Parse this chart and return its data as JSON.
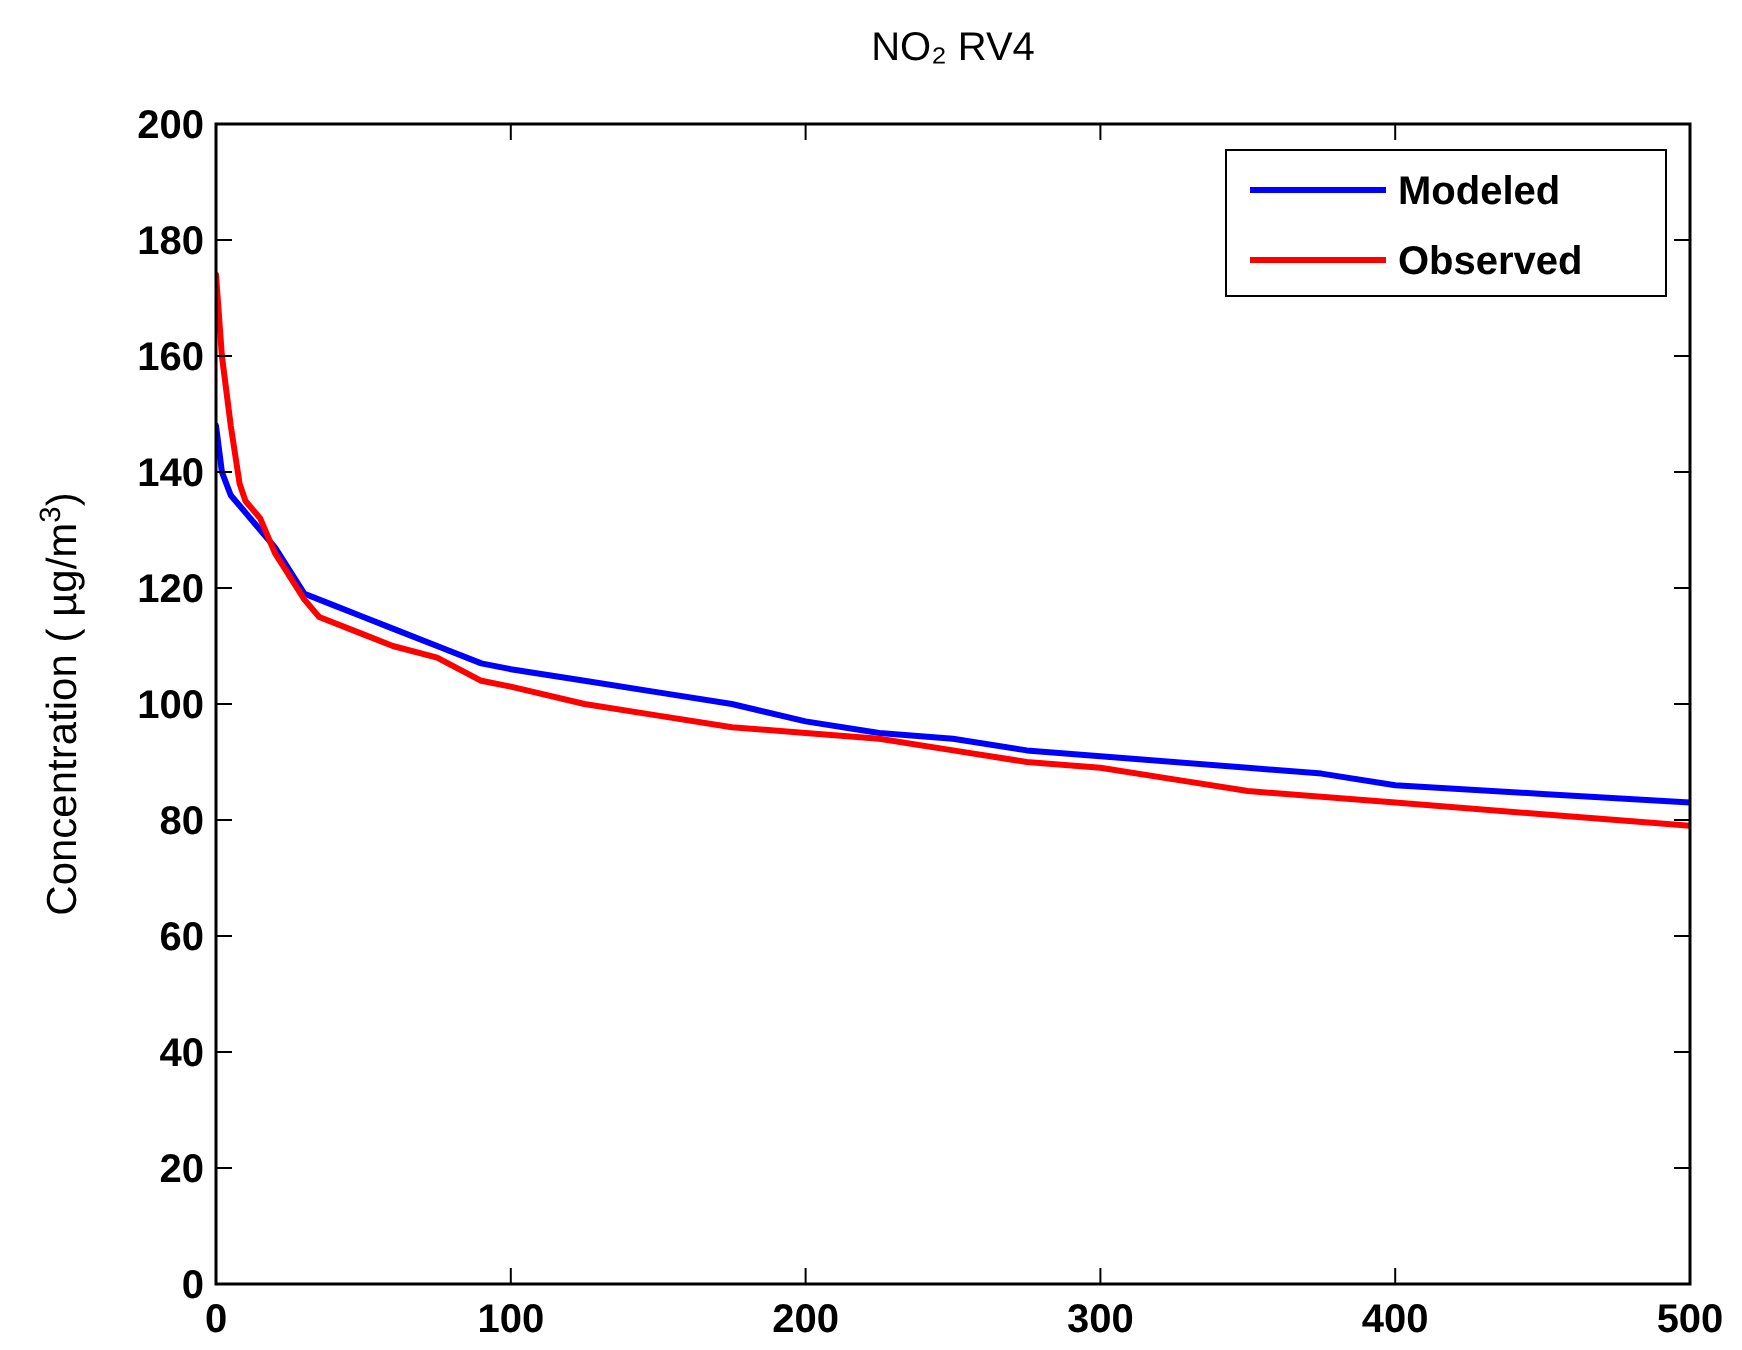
{
  "chart_data": {
    "type": "line",
    "title": "NO₂  RV4",
    "ylabel": "Concentration ( µg/m$^{3}$)",
    "xlim": [
      0,
      500
    ],
    "xticks": [
      0,
      100,
      200,
      300,
      400,
      500
    ],
    "ylim": [
      0,
      200
    ],
    "yticks": [
      0,
      20,
      40,
      60,
      80,
      100,
      120,
      140,
      160,
      180,
      200
    ],
    "grid": false,
    "legend": "top right",
    "line_style": "solid",
    "marker": "none",
    "series": [
      {
        "name": "Modeled",
        "color": "#0000ff",
        "x": [
          0,
          2,
          5,
          10,
          15,
          20,
          25,
          30,
          40,
          50,
          60,
          75,
          90,
          100,
          125,
          150,
          175,
          200,
          225,
          250,
          275,
          300,
          350,
          375,
          400,
          450,
          500
        ],
        "values": [
          148,
          140,
          136,
          133,
          130,
          127,
          123,
          119,
          117,
          115,
          113,
          110,
          107,
          106,
          104,
          102,
          100,
          97,
          95,
          94,
          92,
          91,
          89,
          88,
          86,
          84.5,
          83
        ]
      },
      {
        "name": "Observed",
        "color": "#ff0000",
        "x": [
          0,
          2,
          5,
          8,
          10,
          15,
          20,
          25,
          30,
          35,
          50,
          60,
          75,
          90,
          100,
          125,
          150,
          175,
          200,
          225,
          250,
          275,
          300,
          325,
          350,
          400,
          450,
          475,
          500
        ],
        "values": [
          174,
          160,
          148,
          138,
          135,
          132,
          126,
          122,
          118,
          115,
          112,
          110,
          108,
          104,
          103,
          100,
          98,
          96,
          95,
          94,
          92,
          90,
          89,
          87,
          85,
          83,
          81,
          80,
          79
        ]
      }
    ]
  }
}
